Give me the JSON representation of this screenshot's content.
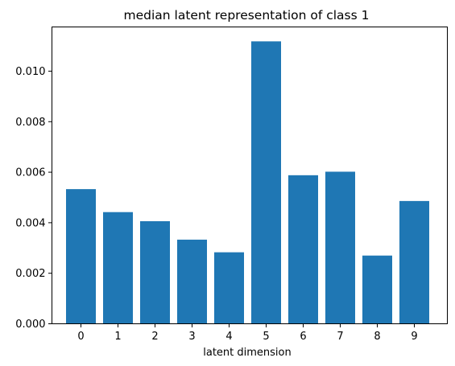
{
  "chart_data": {
    "type": "bar",
    "title": "median latent representation of class 1",
    "xlabel": "latent dimension",
    "ylabel": "",
    "categories": [
      "0",
      "1",
      "2",
      "3",
      "4",
      "5",
      "6",
      "7",
      "8",
      "9"
    ],
    "values": [
      0.00533,
      0.00442,
      0.00406,
      0.00333,
      0.00283,
      0.01118,
      0.00588,
      0.00602,
      0.0027,
      0.00486
    ],
    "ylim": [
      0,
      0.01175
    ],
    "yticks": [
      {
        "value": 0.0,
        "label": "0.000"
      },
      {
        "value": 0.002,
        "label": "0.002"
      },
      {
        "value": 0.004,
        "label": "0.004"
      },
      {
        "value": 0.006,
        "label": "0.006"
      },
      {
        "value": 0.008,
        "label": "0.008"
      },
      {
        "value": 0.01,
        "label": "0.010"
      }
    ],
    "bar_color": "#1f77b4",
    "grid": false,
    "legend": "none"
  }
}
